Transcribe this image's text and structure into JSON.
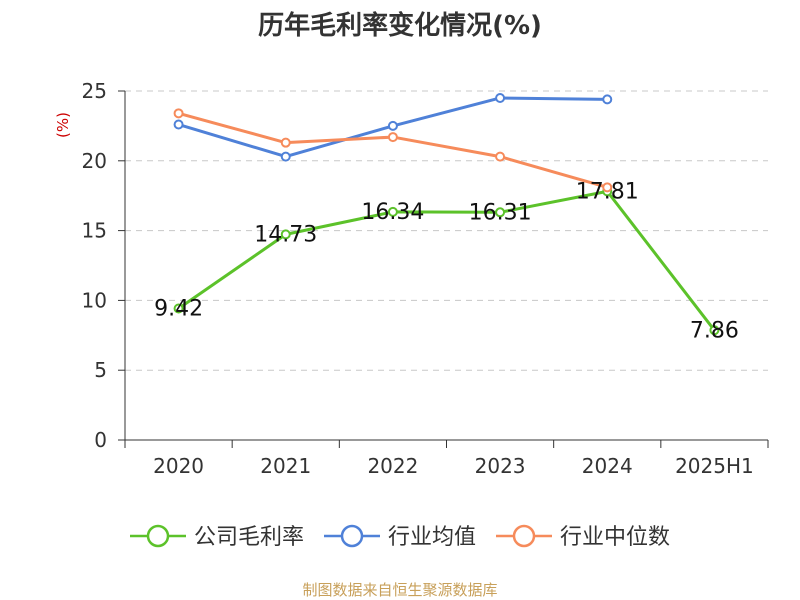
{
  "page": {
    "title": "历年毛利率变化情况(%)",
    "footer": "制图数据来自恒生聚源数据库"
  },
  "chart_data": {
    "type": "line",
    "title": "历年毛利率变化情况(%)",
    "ylabel": "(%)",
    "xlabel": "",
    "categories": [
      "2020",
      "2021",
      "2022",
      "2023",
      "2024",
      "2025H1"
    ],
    "ylim": [
      0,
      25
    ],
    "yticks": [
      0,
      5,
      10,
      15,
      20,
      25
    ],
    "grid": true,
    "legend_position": "bottom",
    "series": [
      {
        "name": "公司毛利率",
        "color": "#5cc22a",
        "values": [
          9.42,
          14.73,
          16.34,
          16.31,
          17.81,
          7.86
        ],
        "labels": [
          "9.42",
          "14.73",
          "16.34",
          "16.31",
          "17.81",
          "7.86"
        ]
      },
      {
        "name": "行业均值",
        "color": "#4f81d8",
        "values": [
          22.6,
          20.3,
          22.5,
          24.5,
          24.4,
          null
        ]
      },
      {
        "name": "行业中位数",
        "color": "#f68b5b",
        "values": [
          23.4,
          21.3,
          21.7,
          20.3,
          18.1,
          null
        ]
      }
    ]
  }
}
